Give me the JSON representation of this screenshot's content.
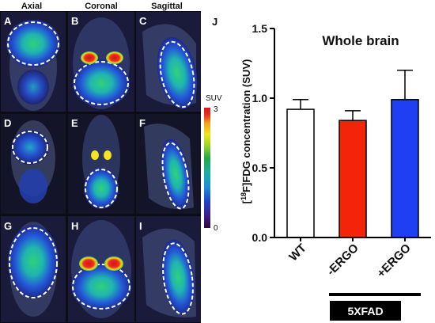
{
  "images": {
    "column_headers": [
      "Axial",
      "Coronal",
      "Sagittal"
    ],
    "panel_letters": [
      "A",
      "B",
      "C",
      "D",
      "E",
      "F",
      "G",
      "H",
      "I"
    ]
  },
  "colorbar": {
    "label": "SUV",
    "max_label": "3",
    "min_label": "0",
    "colors": [
      "#2a0a3c",
      "#3b1f8a",
      "#2340c8",
      "#1c8fd6",
      "#1bb0a0",
      "#23a84a",
      "#9bd22a",
      "#f2e51c",
      "#f4a31a",
      "#e8321c",
      "#d11a1a"
    ]
  },
  "chart_data": {
    "type": "bar",
    "panel_label": "J",
    "title": "Whole brain",
    "ylabel_prefix": "[",
    "ylabel_sup": "18",
    "ylabel_suffix": "F]FDG concentration (SUV)",
    "categories": [
      "WT",
      "-ERGO",
      "+ERGO"
    ],
    "values": [
      0.92,
      0.84,
      0.99
    ],
    "errors": [
      0.07,
      0.07,
      0.21
    ],
    "colors": [
      "#ffffff",
      "#f4240a",
      "#1f3ff2"
    ],
    "ylim": [
      0.0,
      1.5
    ],
    "yticks": [
      "0.0",
      "0.5",
      "1.0",
      "1.5"
    ],
    "group_label": "5XFAD",
    "grid": false
  }
}
